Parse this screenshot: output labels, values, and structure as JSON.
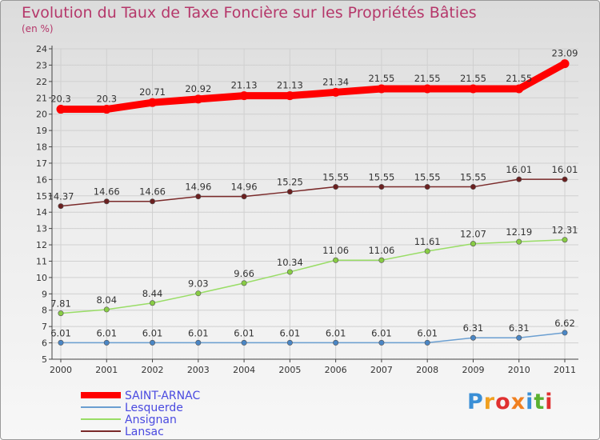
{
  "title": "Evolution du Taux de Taxe Foncière sur les Propriétés Bâties",
  "unit_label": "(en %)",
  "logo": {
    "letters": [
      "P",
      "r",
      "o",
      "x",
      "i",
      "t",
      "i"
    ],
    "colors": [
      "#3a8fd6",
      "#f0a020",
      "#e03030",
      "#f08020",
      "#3a8fd6",
      "#5ab030",
      "#e03030"
    ]
  },
  "chart_data": {
    "type": "line",
    "title": "Evolution du Taux de Taxe Foncière sur les Propriétés Bâties",
    "ylabel": "(en %)",
    "xlabel": "",
    "x": [
      "2000",
      "2001",
      "2002",
      "2003",
      "2004",
      "2005",
      "2006",
      "2007",
      "2008",
      "2009",
      "2010",
      "2011"
    ],
    "ylim": [
      5,
      24
    ],
    "yticks": [
      "5",
      "6",
      "7",
      "8",
      "9",
      "10",
      "11",
      "12",
      "13",
      "14",
      "15",
      "16",
      "17",
      "18",
      "19",
      "20",
      "21",
      "22",
      "23",
      "24"
    ],
    "legend_position": "bottom-left",
    "series": [
      {
        "name": "SAINT-ARNAC",
        "color": "#ff0000",
        "values": [
          20.3,
          20.3,
          20.71,
          20.92,
          21.13,
          21.13,
          21.34,
          21.55,
          21.55,
          21.55,
          21.55,
          23.09
        ],
        "labels": [
          "20.3",
          "20.3",
          "20.71",
          "20.92",
          "21.13",
          "21.13",
          "21.34",
          "21.55",
          "21.55",
          "21.55",
          "21.55",
          "23.09"
        ]
      },
      {
        "name": "Lesquerde",
        "color": "#6b9fd1",
        "values": [
          6.01,
          6.01,
          6.01,
          6.01,
          6.01,
          6.01,
          6.01,
          6.01,
          6.01,
          6.31,
          6.31,
          6.62
        ],
        "labels": [
          "6.01",
          "6.01",
          "6.01",
          "6.01",
          "6.01",
          "6.01",
          "6.01",
          "6.01",
          "6.01",
          "6.31",
          "6.31",
          "6.62"
        ]
      },
      {
        "name": "Ansignan",
        "color": "#99dd66",
        "values": [
          7.81,
          8.04,
          8.44,
          9.03,
          9.66,
          10.34,
          11.06,
          11.06,
          11.61,
          12.07,
          12.19,
          12.31
        ],
        "labels": [
          "7.81",
          "8.04",
          "8.44",
          "9.03",
          "9.66",
          "10.34",
          "11.06",
          "11.06",
          "11.61",
          "12.07",
          "12.19",
          "12.31"
        ]
      },
      {
        "name": "Lansac",
        "color": "#7a2a2a",
        "values": [
          14.37,
          14.66,
          14.66,
          14.96,
          14.96,
          15.25,
          15.55,
          15.55,
          15.55,
          15.55,
          16.01,
          16.01
        ],
        "labels": [
          "14.37",
          "14.66",
          "14.66",
          "14.96",
          "14.96",
          "15.25",
          "15.55",
          "15.55",
          "15.55",
          "15.55",
          "16.01",
          "16.01"
        ]
      }
    ]
  }
}
